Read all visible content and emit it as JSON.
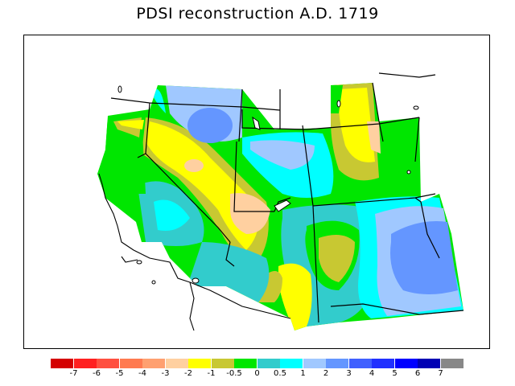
{
  "title": "PDSI reconstruction A.D. 1719",
  "legend": {
    "colors": [
      "#d40000",
      "#ff2020",
      "#ff5040",
      "#ff7a50",
      "#ffa070",
      "#ffd0a0",
      "#ffff00",
      "#c8c832",
      "#00e600",
      "#32cccc",
      "#00ffff",
      "#a0c8ff",
      "#6496ff",
      "#4060ff",
      "#2030ff",
      "#0000ff",
      "#0000b4",
      "#888888"
    ],
    "labels": [
      "-7",
      "-6",
      "-5",
      "-4",
      "-3",
      "-2",
      "-1",
      "-0.5",
      "0",
      "0.5",
      "1",
      "2",
      "3",
      "4",
      "5",
      "6",
      "7"
    ]
  }
}
